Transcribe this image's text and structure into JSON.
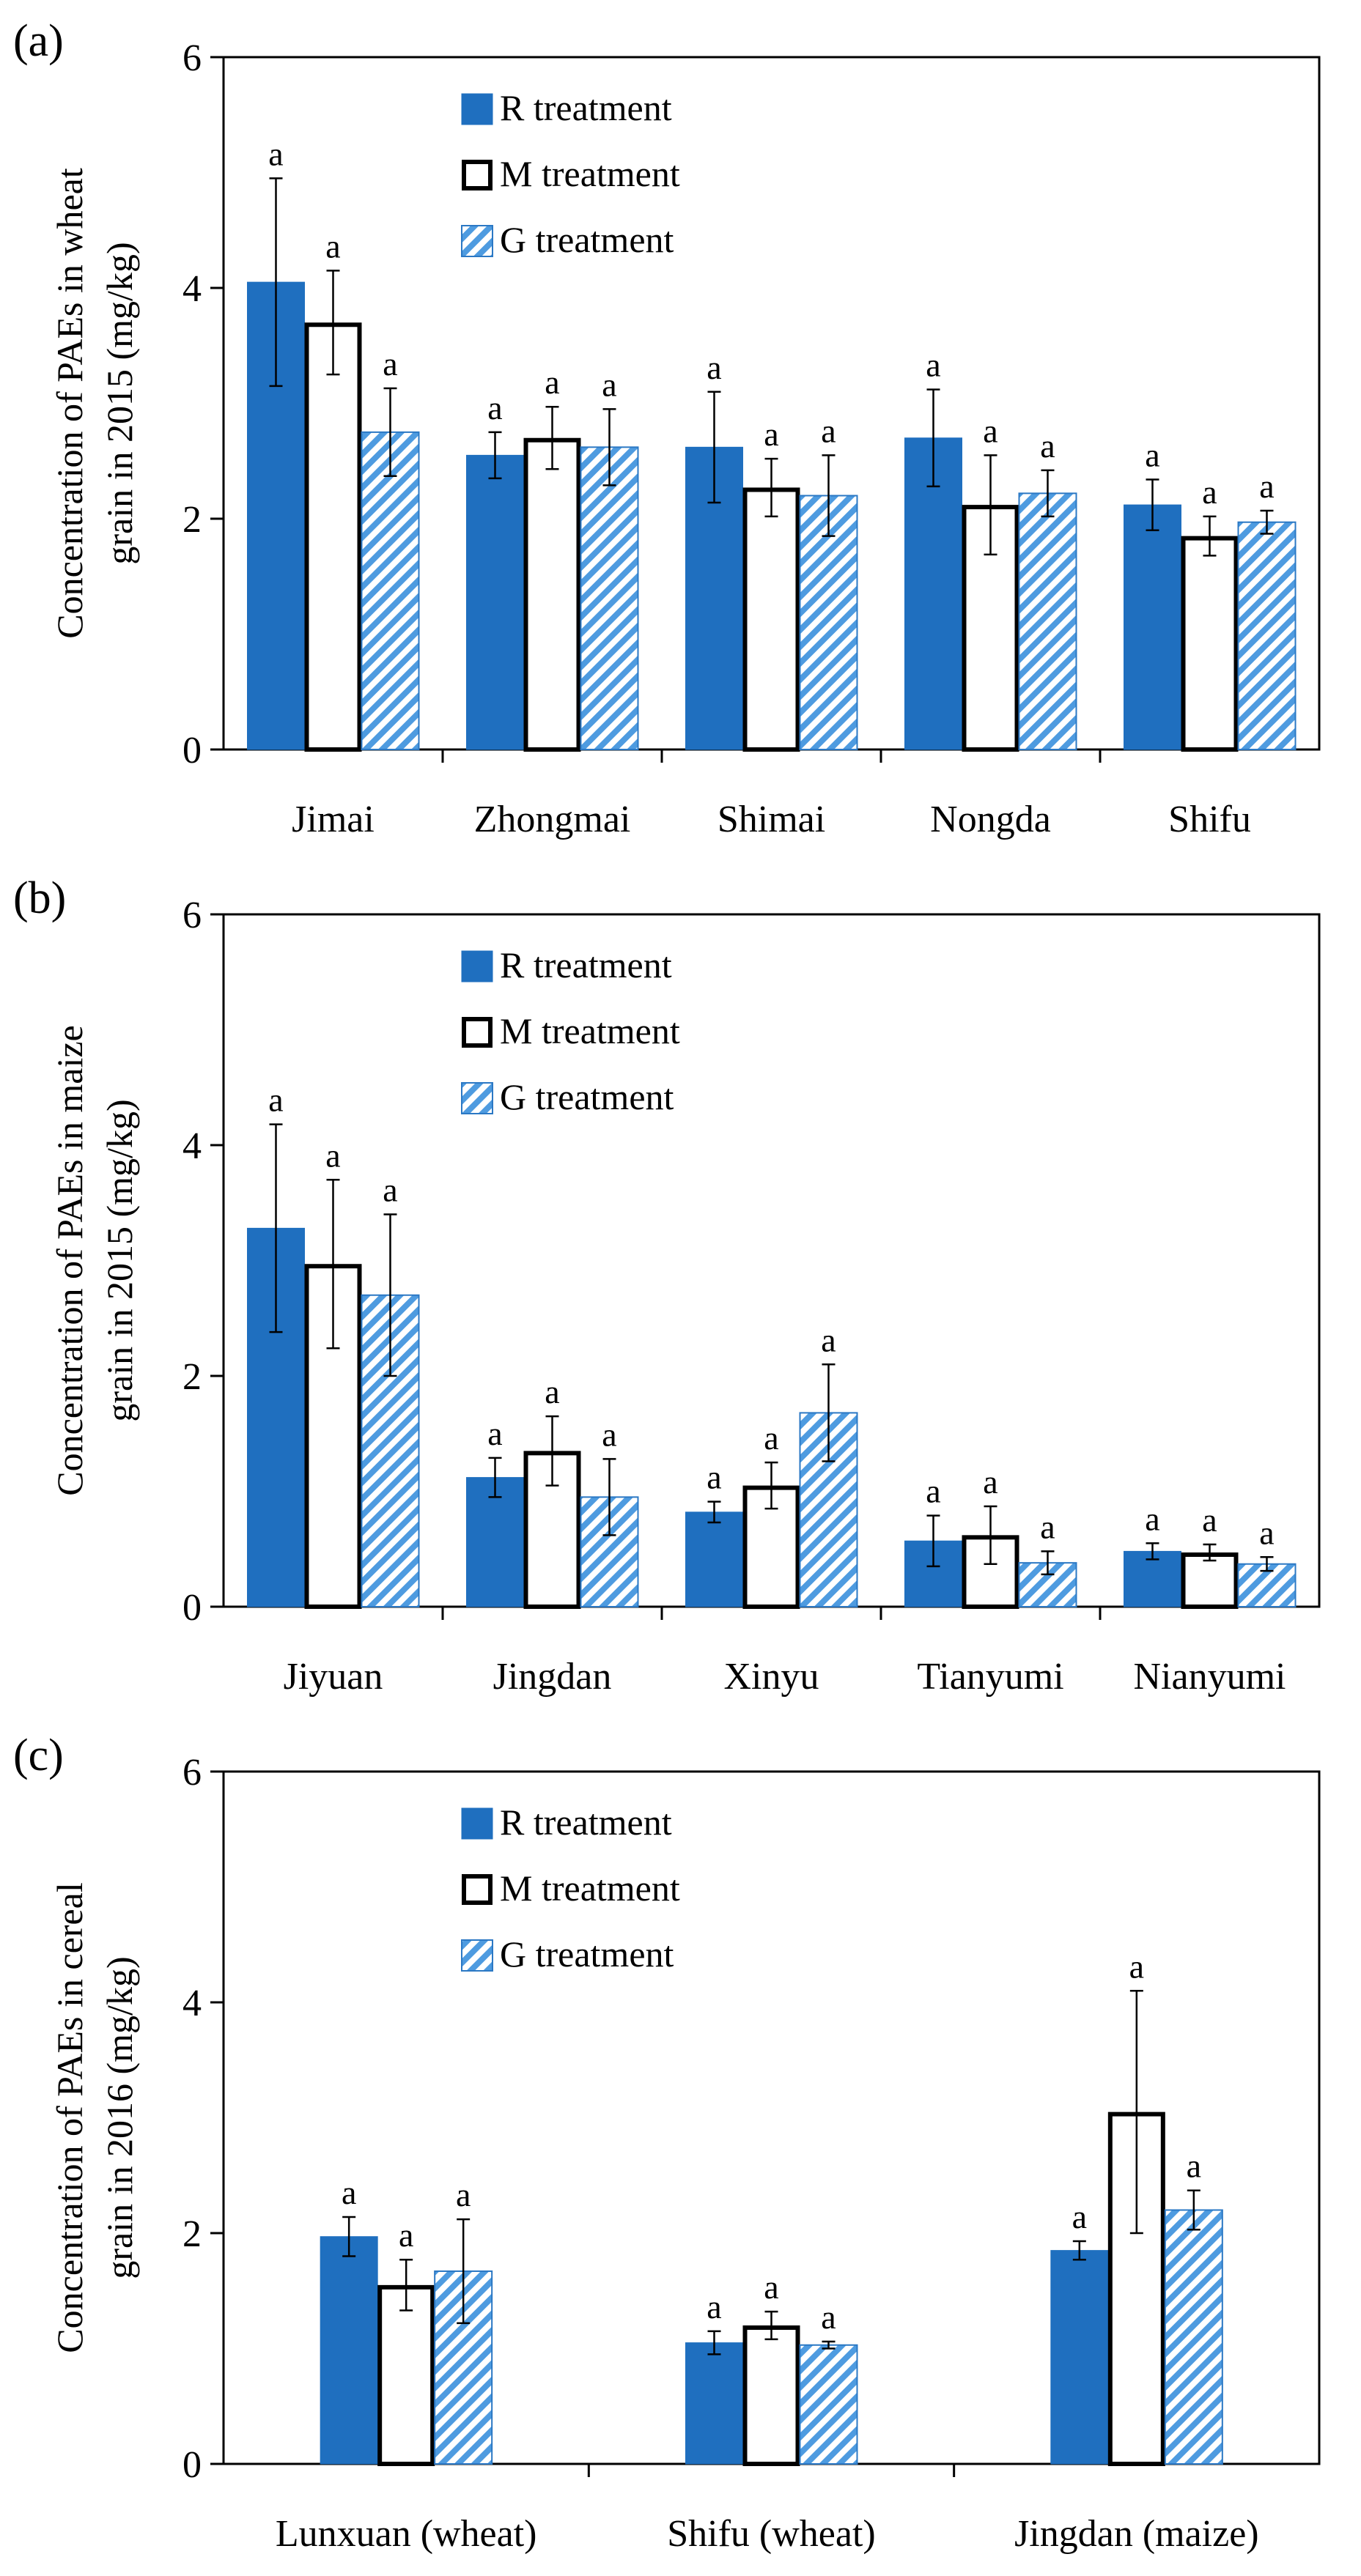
{
  "colors": {
    "r_fill": "#1f6fbf",
    "m_fill": "#ffffff",
    "g_fill": "#4e9be0",
    "g_stroke": "#2b78c4",
    "axis": "#000000"
  },
  "legend": {
    "r": "R treatment",
    "m": "M treatment",
    "g": "G treatment"
  },
  "chart_data": [
    {
      "type": "bar",
      "panel": "(a)",
      "ylabel_line1": "Concentration of PAEs in wheat",
      "ylabel_line2": "grain in 2015 (mg/kg)",
      "ylim": [
        0,
        6
      ],
      "yticks": [
        0,
        2,
        4,
        6
      ],
      "categories": [
        "Jimai",
        "Zhongmai",
        "Shimai",
        "Nongda",
        "Shifu"
      ],
      "series": [
        {
          "name": "R treatment",
          "values": [
            4.05,
            2.55,
            2.62,
            2.7,
            2.12
          ],
          "errors": [
            0.9,
            0.2,
            0.48,
            0.42,
            0.22
          ],
          "labels": [
            "a",
            "a",
            "a",
            "a",
            "a"
          ]
        },
        {
          "name": "M treatment",
          "values": [
            3.7,
            2.7,
            2.27,
            2.12,
            1.85
          ],
          "errors": [
            0.45,
            0.27,
            0.25,
            0.43,
            0.17
          ],
          "labels": [
            "a",
            "a",
            "a",
            "a",
            "a"
          ]
        },
        {
          "name": "G treatment",
          "values": [
            2.75,
            2.62,
            2.2,
            2.22,
            1.97
          ],
          "errors": [
            0.38,
            0.33,
            0.35,
            0.2,
            0.1
          ],
          "labels": [
            "a",
            "a",
            "a",
            "a",
            "a"
          ]
        }
      ]
    },
    {
      "type": "bar",
      "panel": "(b)",
      "ylabel_line1": "Concentration of PAEs in maize",
      "ylabel_line2": "grain in 2015 (mg/kg)",
      "ylim": [
        0,
        6
      ],
      "yticks": [
        0,
        2,
        4,
        6
      ],
      "categories": [
        "Jiyuan",
        "Jingdan",
        "Xinyu",
        "Tianyumi",
        "Nianyumi"
      ],
      "series": [
        {
          "name": "R treatment",
          "values": [
            3.28,
            1.12,
            0.82,
            0.57,
            0.48
          ],
          "errors": [
            0.9,
            0.17,
            0.09,
            0.22,
            0.07
          ],
          "labels": [
            "a",
            "a",
            "a",
            "a",
            "a"
          ]
        },
        {
          "name": "M treatment",
          "values": [
            2.97,
            1.35,
            1.05,
            0.62,
            0.47
          ],
          "errors": [
            0.73,
            0.3,
            0.2,
            0.25,
            0.07
          ],
          "labels": [
            "a",
            "a",
            "a",
            "a",
            "a"
          ]
        },
        {
          "name": "G treatment",
          "values": [
            2.7,
            0.95,
            1.68,
            0.38,
            0.37
          ],
          "errors": [
            0.7,
            0.33,
            0.42,
            0.1,
            0.06
          ],
          "labels": [
            "a",
            "a",
            "a",
            "a",
            "a"
          ]
        }
      ]
    },
    {
      "type": "bar",
      "panel": "(c)",
      "ylabel_line1": "Concentration of PAEs in cereal",
      "ylabel_line2": "grain in 2016 (mg/kg)",
      "ylim": [
        0,
        6
      ],
      "yticks": [
        0,
        2,
        4,
        6
      ],
      "categories": [
        "Lunxuan (wheat)",
        "Shifu (wheat)",
        "Jingdan (maize)"
      ],
      "series": [
        {
          "name": "R treatment",
          "values": [
            1.97,
            1.05,
            1.85
          ],
          "errors": [
            0.17,
            0.1,
            0.08
          ],
          "labels": [
            "a",
            "a",
            "a"
          ]
        },
        {
          "name": "M treatment",
          "values": [
            1.55,
            1.2,
            3.05
          ],
          "errors": [
            0.22,
            0.12,
            1.05
          ],
          "labels": [
            "a",
            "a",
            "a"
          ]
        },
        {
          "name": "G treatment",
          "values": [
            1.67,
            1.03,
            2.2
          ],
          "errors": [
            0.45,
            0.03,
            0.17
          ],
          "labels": [
            "a",
            "a",
            "a"
          ]
        }
      ]
    }
  ]
}
